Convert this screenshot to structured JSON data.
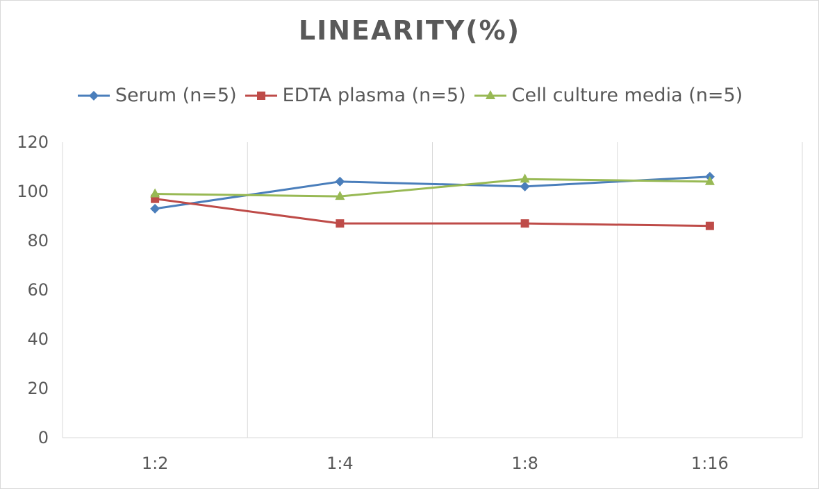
{
  "chart_data": {
    "type": "line",
    "title": "LINEARITY(%)",
    "categories": [
      "1:2",
      "1:4",
      "1:8",
      "1:16"
    ],
    "series": [
      {
        "name": "Serum (n=5)",
        "values": [
          93,
          104,
          102,
          106
        ],
        "color": "#4a7ebb",
        "marker": "diamond"
      },
      {
        "name": "EDTA plasma (n=5)",
        "values": [
          97,
          87,
          87,
          86
        ],
        "color": "#be4b48",
        "marker": "square"
      },
      {
        "name": "Cell culture media (n=5)",
        "values": [
          99,
          98,
          105,
          104
        ],
        "color": "#98b954",
        "marker": "triangle"
      }
    ],
    "ylim": [
      0,
      120
    ],
    "yticks": [
      0,
      20,
      40,
      60,
      80,
      100,
      120
    ],
    "grid": "vertical",
    "legend": "top"
  }
}
